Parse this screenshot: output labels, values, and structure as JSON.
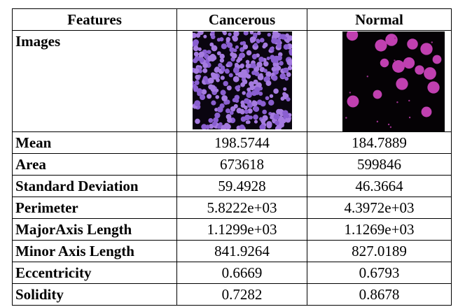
{
  "table": {
    "columns": [
      "Features",
      "Cancerous",
      "Normal"
    ],
    "image_row_label": "Images",
    "rows": [
      [
        "Mean",
        "198.5744",
        "184.7889"
      ],
      [
        "Area",
        "673618",
        "599846"
      ],
      [
        "Standard Deviation",
        "59.4928",
        "46.3664"
      ],
      [
        "Perimeter",
        "5.8222e+03",
        "4.3972e+03"
      ],
      [
        "MajorAxis Length",
        "1.1299e+03",
        "1.1269e+03"
      ],
      [
        "Minor Axis Length",
        "841.9264",
        "827.0189"
      ],
      [
        "Eccentricity",
        "0.6669",
        "0.6793"
      ],
      [
        "Solidity",
        "0.7282",
        "0.8678"
      ]
    ]
  }
}
